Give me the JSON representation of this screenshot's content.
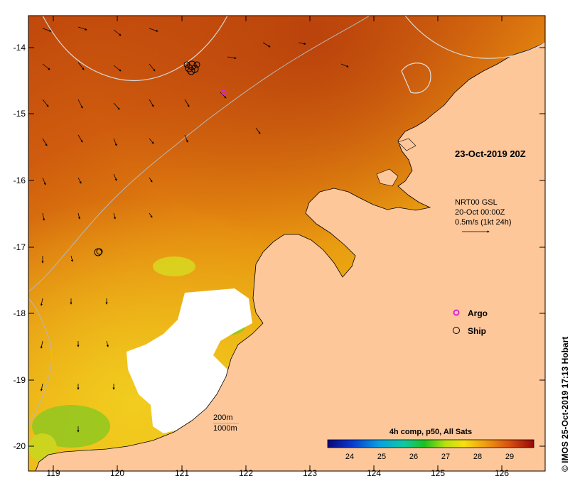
{
  "map": {
    "date_label": "23-Oct-2019 20Z",
    "current_info": {
      "line1": "NRT00 GSL",
      "line2": "20-Oct 00:00Z",
      "line3": "0.5m/s (1kt 24h)"
    },
    "legend": {
      "argo_label": "Argo",
      "ship_label": "Ship",
      "argo_color": "#e020e0"
    },
    "contours": {
      "label_200": "200m",
      "label_1000": "1000m"
    },
    "colorbar": {
      "title": "4h comp, p50, All Sats",
      "ticks": [
        "24",
        "25",
        "26",
        "27",
        "28",
        "29"
      ]
    },
    "x_ticks": [
      "119",
      "120",
      "121",
      "122",
      "123",
      "124",
      "125",
      "126"
    ],
    "y_ticks": [
      "-14",
      "-15",
      "-16",
      "-17",
      "-18",
      "-19",
      "-20"
    ],
    "credit": "© IMOS 25-Oct-2019 17:13 Hobart",
    "colors": {
      "land": "#fdc79a",
      "warm": "#c24c0c",
      "mid": "#e68a10",
      "cool": "#f2c414",
      "cloud": "#ffffff"
    }
  }
}
